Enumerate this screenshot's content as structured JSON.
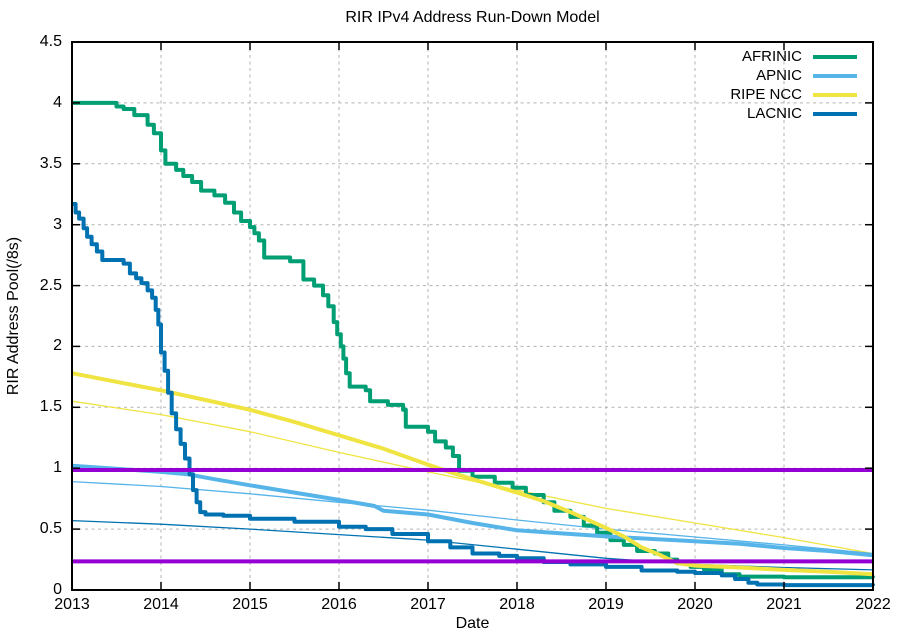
{
  "chart_data": {
    "type": "line",
    "title": "RIR IPv4 Address Run-Down Model",
    "xlabel": "Date",
    "ylabel": "RIR Address Pool(/8s)",
    "xlim": [
      2013,
      2022
    ],
    "ylim": [
      0,
      4.5
    ],
    "x_tick_values": [
      2013,
      2014,
      2015,
      2016,
      2017,
      2018,
      2019,
      2020,
      2021,
      2022
    ],
    "x_tick_labels": [
      "2013",
      "2014",
      "2015",
      "2016",
      "2017",
      "2018",
      "2019",
      "2020",
      "2021",
      "2022"
    ],
    "y_tick_values": [
      0,
      0.5,
      1,
      1.5,
      2,
      2.5,
      3,
      3.5,
      4,
      4.5
    ],
    "y_tick_labels": [
      "0",
      "0.5",
      "1",
      "1.5",
      "2",
      "2.5",
      "3",
      "3.5",
      "4",
      "4.5"
    ],
    "grid": true,
    "grid_color": "#b3b3b3",
    "border_color": "#000000",
    "legend": {
      "position": "top-right-inside",
      "entries": [
        "AFRINIC",
        "APNIC",
        "RIPE NCC",
        "LACNIC"
      ]
    },
    "thresholds": [
      {
        "y": 0.985,
        "color": "#9400D3"
      },
      {
        "y": 0.235,
        "color": "#9400D3"
      }
    ],
    "series": [
      {
        "name": "AFRINIC",
        "role": "actual",
        "color": "#009E73",
        "width": 4,
        "step": true,
        "points": [
          [
            2013.0,
            4.0
          ],
          [
            2013.45,
            4.0
          ],
          [
            2013.5,
            3.97
          ],
          [
            2013.58,
            3.95
          ],
          [
            2013.7,
            3.9
          ],
          [
            2013.85,
            3.82
          ],
          [
            2013.92,
            3.75
          ],
          [
            2014.0,
            3.61
          ],
          [
            2014.05,
            3.5
          ],
          [
            2014.17,
            3.45
          ],
          [
            2014.25,
            3.4
          ],
          [
            2014.35,
            3.35
          ],
          [
            2014.45,
            3.28
          ],
          [
            2014.6,
            3.24
          ],
          [
            2014.72,
            3.18
          ],
          [
            2014.82,
            3.1
          ],
          [
            2014.9,
            3.03
          ],
          [
            2015.0,
            2.98
          ],
          [
            2015.05,
            2.93
          ],
          [
            2015.1,
            2.87
          ],
          [
            2015.16,
            2.73
          ],
          [
            2015.45,
            2.7
          ],
          [
            2015.6,
            2.55
          ],
          [
            2015.72,
            2.5
          ],
          [
            2015.82,
            2.42
          ],
          [
            2015.88,
            2.33
          ],
          [
            2015.94,
            2.2
          ],
          [
            2015.98,
            2.1
          ],
          [
            2016.02,
            2.0
          ],
          [
            2016.05,
            1.9
          ],
          [
            2016.08,
            1.78
          ],
          [
            2016.12,
            1.67
          ],
          [
            2016.3,
            1.64
          ],
          [
            2016.35,
            1.55
          ],
          [
            2016.55,
            1.52
          ],
          [
            2016.72,
            1.48
          ],
          [
            2016.75,
            1.34
          ],
          [
            2017.0,
            1.3
          ],
          [
            2017.08,
            1.22
          ],
          [
            2017.2,
            1.17
          ],
          [
            2017.28,
            1.1
          ],
          [
            2017.35,
            0.98
          ],
          [
            2017.5,
            0.93
          ],
          [
            2017.75,
            0.88
          ],
          [
            2017.95,
            0.84
          ],
          [
            2018.1,
            0.78
          ],
          [
            2018.3,
            0.72
          ],
          [
            2018.42,
            0.65
          ],
          [
            2018.6,
            0.6
          ],
          [
            2018.75,
            0.53
          ],
          [
            2018.9,
            0.47
          ],
          [
            2019.05,
            0.41
          ],
          [
            2019.2,
            0.37
          ],
          [
            2019.35,
            0.32
          ],
          [
            2019.55,
            0.3
          ],
          [
            2019.7,
            0.25
          ],
          [
            2019.8,
            0.22
          ],
          [
            2019.95,
            0.19
          ],
          [
            2020.1,
            0.17
          ],
          [
            2020.3,
            0.13
          ],
          [
            2020.5,
            0.11
          ],
          [
            2021.0,
            0.105
          ],
          [
            2022.0,
            0.1
          ]
        ]
      },
      {
        "name": "APNIC",
        "role": "actual",
        "color": "#56B4E9",
        "width": 4,
        "step": false,
        "points": [
          [
            2013.0,
            1.02
          ],
          [
            2013.5,
            0.995
          ],
          [
            2014.0,
            0.97
          ],
          [
            2014.3,
            0.95
          ],
          [
            2014.6,
            0.91
          ],
          [
            2015.0,
            0.86
          ],
          [
            2015.5,
            0.8
          ],
          [
            2016.0,
            0.74
          ],
          [
            2016.4,
            0.69
          ],
          [
            2016.5,
            0.65
          ],
          [
            2017.0,
            0.62
          ],
          [
            2017.5,
            0.55
          ],
          [
            2018.0,
            0.49
          ],
          [
            2018.5,
            0.465
          ],
          [
            2019.0,
            0.44
          ],
          [
            2019.5,
            0.42
          ],
          [
            2020.0,
            0.4
          ],
          [
            2020.5,
            0.38
          ],
          [
            2021.0,
            0.345
          ],
          [
            2021.5,
            0.32
          ],
          [
            2022.0,
            0.285
          ]
        ]
      },
      {
        "name": "RIPE NCC",
        "role": "actual",
        "color": "#F0E442",
        "width": 4,
        "step": false,
        "points": [
          [
            2013.0,
            1.78
          ],
          [
            2013.5,
            1.71
          ],
          [
            2014.0,
            1.64
          ],
          [
            2014.5,
            1.56
          ],
          [
            2015.0,
            1.48
          ],
          [
            2015.5,
            1.38
          ],
          [
            2016.0,
            1.27
          ],
          [
            2016.5,
            1.16
          ],
          [
            2017.0,
            1.03
          ],
          [
            2017.2,
            0.98
          ],
          [
            2017.5,
            0.91
          ],
          [
            2018.0,
            0.8
          ],
          [
            2018.3,
            0.73
          ],
          [
            2018.6,
            0.64
          ],
          [
            2019.0,
            0.51
          ],
          [
            2019.2,
            0.44
          ],
          [
            2019.4,
            0.35
          ],
          [
            2019.6,
            0.29
          ],
          [
            2019.8,
            0.22
          ],
          [
            2020.0,
            0.2
          ],
          [
            2020.5,
            0.185
          ],
          [
            2021.0,
            0.165
          ],
          [
            2021.5,
            0.15
          ],
          [
            2022.0,
            0.13
          ]
        ]
      },
      {
        "name": "LACNIC",
        "role": "actual",
        "color": "#0072B2",
        "width": 4,
        "step": true,
        "points": [
          [
            2013.0,
            3.17
          ],
          [
            2013.04,
            3.1
          ],
          [
            2013.08,
            3.05
          ],
          [
            2013.13,
            2.97
          ],
          [
            2013.17,
            2.9
          ],
          [
            2013.22,
            2.84
          ],
          [
            2013.28,
            2.78
          ],
          [
            2013.34,
            2.71
          ],
          [
            2013.58,
            2.68
          ],
          [
            2013.65,
            2.6
          ],
          [
            2013.72,
            2.56
          ],
          [
            2013.78,
            2.52
          ],
          [
            2013.85,
            2.46
          ],
          [
            2013.9,
            2.4
          ],
          [
            2013.94,
            2.3
          ],
          [
            2013.97,
            2.18
          ],
          [
            2014.0,
            1.95
          ],
          [
            2014.04,
            1.8
          ],
          [
            2014.08,
            1.62
          ],
          [
            2014.12,
            1.45
          ],
          [
            2014.17,
            1.32
          ],
          [
            2014.22,
            1.2
          ],
          [
            2014.27,
            1.08
          ],
          [
            2014.32,
            0.95
          ],
          [
            2014.36,
            0.82
          ],
          [
            2014.4,
            0.72
          ],
          [
            2014.44,
            0.64
          ],
          [
            2014.5,
            0.62
          ],
          [
            2014.7,
            0.61
          ],
          [
            2015.0,
            0.585
          ],
          [
            2015.5,
            0.56
          ],
          [
            2016.0,
            0.52
          ],
          [
            2016.3,
            0.5
          ],
          [
            2016.6,
            0.46
          ],
          [
            2017.0,
            0.4
          ],
          [
            2017.25,
            0.35
          ],
          [
            2017.5,
            0.3
          ],
          [
            2017.8,
            0.28
          ],
          [
            2018.0,
            0.26
          ],
          [
            2018.3,
            0.23
          ],
          [
            2018.6,
            0.21
          ],
          [
            2019.0,
            0.19
          ],
          [
            2019.4,
            0.16
          ],
          [
            2019.8,
            0.15
          ],
          [
            2020.0,
            0.14
          ],
          [
            2020.3,
            0.12
          ],
          [
            2020.45,
            0.09
          ],
          [
            2020.6,
            0.06
          ],
          [
            2020.7,
            0.045
          ],
          [
            2021.0,
            0.04
          ],
          [
            2022.0,
            0.035
          ]
        ]
      },
      {
        "name": "RIPE NCC model",
        "role": "model",
        "color": "#F0E442",
        "width": 1.3,
        "step": false,
        "points": [
          [
            2013,
            1.55
          ],
          [
            2014,
            1.44
          ],
          [
            2015,
            1.3
          ],
          [
            2016,
            1.13
          ],
          [
            2017,
            0.97
          ],
          [
            2018,
            0.82
          ],
          [
            2019,
            0.67
          ],
          [
            2020,
            0.55
          ],
          [
            2021,
            0.43
          ],
          [
            2022,
            0.3
          ]
        ]
      },
      {
        "name": "APNIC model",
        "role": "model",
        "color": "#56B4E9",
        "width": 1.3,
        "step": false,
        "points": [
          [
            2013,
            0.89
          ],
          [
            2014,
            0.85
          ],
          [
            2015,
            0.79
          ],
          [
            2016,
            0.72
          ],
          [
            2017,
            0.655
          ],
          [
            2018,
            0.575
          ],
          [
            2019,
            0.5
          ],
          [
            2020,
            0.435
          ],
          [
            2021,
            0.37
          ],
          [
            2022,
            0.3
          ]
        ]
      },
      {
        "name": "LACNIC model",
        "role": "model",
        "color": "#0072B2",
        "width": 1.3,
        "step": false,
        "points": [
          [
            2013,
            0.57
          ],
          [
            2014,
            0.54
          ],
          [
            2015,
            0.5
          ],
          [
            2016,
            0.455
          ],
          [
            2017,
            0.41
          ],
          [
            2018,
            0.335
          ],
          [
            2019,
            0.26
          ],
          [
            2020,
            0.21
          ],
          [
            2021,
            0.185
          ],
          [
            2022,
            0.165
          ]
        ]
      }
    ]
  }
}
